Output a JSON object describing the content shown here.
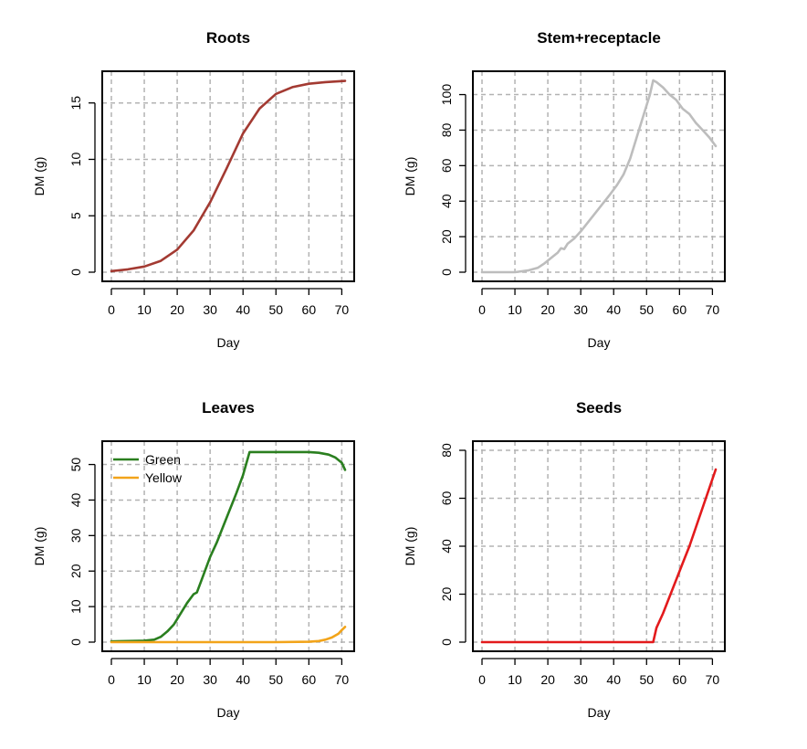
{
  "chart_data": [
    {
      "type": "line",
      "title": "Roots",
      "xlabel": "Day",
      "ylabel": "DM (g)",
      "xlim": [
        0,
        71
      ],
      "ylim": [
        0,
        17
      ],
      "xticks": [
        0,
        10,
        20,
        30,
        40,
        50,
        60,
        70
      ],
      "yticks": [
        0,
        5,
        10,
        15
      ],
      "grid": true,
      "series": [
        {
          "name": "Roots",
          "color": "#a33a32",
          "x": [
            0,
            5,
            10,
            15,
            20,
            25,
            30,
            35,
            40,
            45,
            50,
            55,
            60,
            65,
            71
          ],
          "y": [
            0.1,
            0.25,
            0.5,
            1.0,
            2.0,
            3.7,
            6.2,
            9.2,
            12.3,
            14.5,
            15.8,
            16.4,
            16.7,
            16.85,
            16.95
          ]
        }
      ]
    },
    {
      "type": "line",
      "title": "Stem+receptacle",
      "xlabel": "Day",
      "ylabel": "DM (g)",
      "xlim": [
        0,
        71
      ],
      "ylim": [
        0,
        108
      ],
      "xticks": [
        0,
        10,
        20,
        30,
        40,
        50,
        60,
        70
      ],
      "yticks": [
        0,
        20,
        40,
        60,
        80,
        100
      ],
      "grid": true,
      "series": [
        {
          "name": "Stem+receptacle",
          "color": "#bdbdbd",
          "x": [
            0,
            10,
            14,
            17,
            19,
            21,
            23,
            24,
            25,
            26,
            28,
            30,
            33,
            36,
            39,
            41,
            43,
            45,
            47,
            49,
            51,
            52,
            53,
            55,
            57,
            59,
            61,
            63,
            65,
            67,
            69,
            71
          ],
          "y": [
            0,
            0,
            1,
            2.5,
            5,
            8,
            11,
            13.5,
            13,
            16,
            19,
            23,
            30,
            37,
            44,
            49,
            55,
            64,
            76,
            88,
            100,
            108,
            107,
            104,
            100,
            97,
            92,
            89,
            84,
            80,
            76,
            71
          ]
        }
      ]
    },
    {
      "type": "line",
      "title": "Leaves",
      "xlabel": "Day",
      "ylabel": "DM (g)",
      "xlim": [
        0,
        71
      ],
      "ylim": [
        0,
        54
      ],
      "xticks": [
        0,
        10,
        20,
        30,
        40,
        50,
        60,
        70
      ],
      "yticks": [
        0,
        10,
        20,
        30,
        40,
        50
      ],
      "grid": true,
      "legend": {
        "position": "top-left",
        "entries": [
          "Green",
          "Yellow"
        ]
      },
      "series": [
        {
          "name": "Green",
          "color": "#2a7f1f",
          "x": [
            0,
            5,
            10,
            13,
            15,
            17,
            19,
            21,
            23,
            25,
            26,
            28,
            30,
            32,
            35,
            38,
            40,
            42,
            45,
            50,
            55,
            60,
            63,
            66,
            68,
            70,
            71
          ],
          "y": [
            0.2,
            0.3,
            0.4,
            0.7,
            1.5,
            3,
            5,
            8,
            11,
            13.5,
            14,
            19,
            24,
            28,
            35,
            42,
            47,
            53.5,
            53.5,
            53.5,
            53.5,
            53.5,
            53.3,
            52.8,
            52,
            50.5,
            48.5
          ]
        },
        {
          "name": "Yellow",
          "color": "#f2a41a",
          "x": [
            0,
            10,
            20,
            30,
            40,
            50,
            60,
            63,
            65,
            67,
            69,
            70,
            71
          ],
          "y": [
            0,
            0,
            0,
            0,
            0,
            0,
            0.1,
            0.3,
            0.7,
            1.3,
            2.4,
            3.4,
            4.3
          ]
        }
      ]
    },
    {
      "type": "line",
      "title": "Seeds",
      "xlabel": "Day",
      "ylabel": "DM (g)",
      "xlim": [
        0,
        71
      ],
      "ylim": [
        0,
        80
      ],
      "xticks": [
        0,
        10,
        20,
        30,
        40,
        50,
        60,
        70
      ],
      "yticks": [
        0,
        20,
        40,
        60,
        80
      ],
      "grid": true,
      "series": [
        {
          "name": "Seeds",
          "color": "#e31a1c",
          "x": [
            0,
            10,
            20,
            30,
            40,
            50,
            52,
            53,
            55,
            57,
            59,
            61,
            63,
            65,
            67,
            69,
            71
          ],
          "y": [
            0,
            0,
            0,
            0,
            0,
            0,
            0,
            6,
            12,
            19,
            26,
            33,
            40,
            48,
            56,
            64,
            72
          ]
        }
      ]
    }
  ]
}
